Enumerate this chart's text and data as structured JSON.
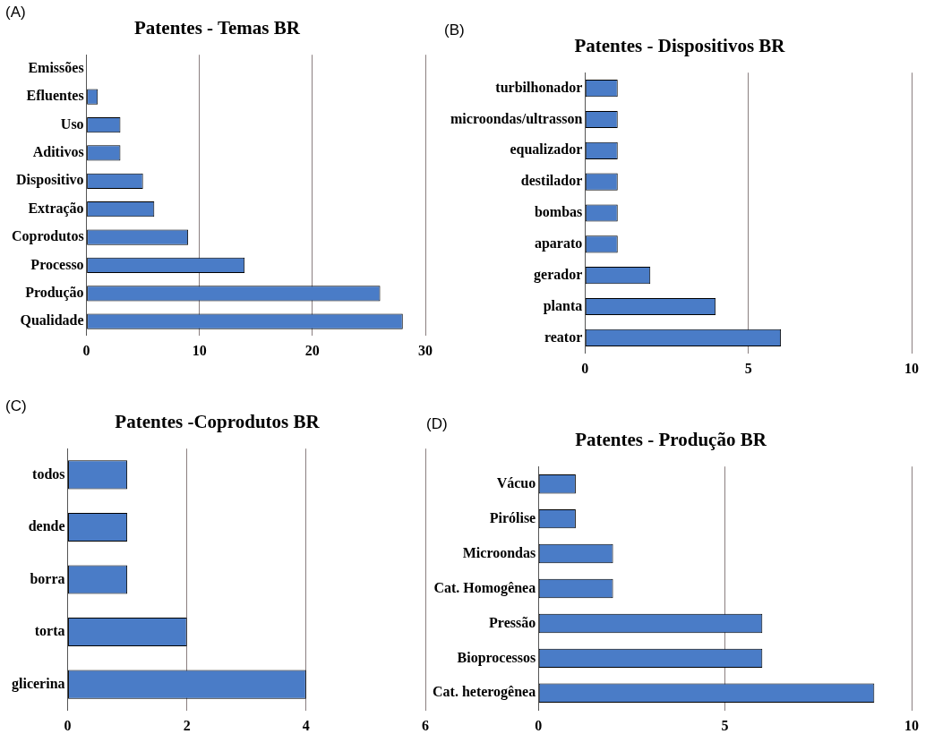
{
  "chart_data": [
    {
      "type": "bar",
      "orientation": "horizontal",
      "title": "Patentes - Temas BR",
      "annotations": [
        "(A)"
      ],
      "categories": [
        "Emissões",
        "Efluentes",
        "Uso",
        "Aditivos",
        "Dispositivo",
        "Extração",
        "Coprodutos",
        "Processo",
        "Produção",
        "Qualidade"
      ],
      "values": [
        0,
        1,
        3,
        3,
        5,
        6,
        9,
        14,
        26,
        28
      ],
      "color": "#4a7cc7",
      "xlim": [
        0,
        30
      ],
      "xticks": [
        0,
        10,
        20,
        30
      ],
      "grid": "x"
    },
    {
      "type": "bar",
      "orientation": "horizontal",
      "title": "Patentes - Dispositivos BR",
      "annotations": [
        "(B)"
      ],
      "categories": [
        "turbilhonador",
        "microondas/ultrasson",
        "equalizador",
        "destilador",
        "bombas",
        "aparato",
        "gerador",
        "planta",
        "reator"
      ],
      "values": [
        1,
        1,
        1,
        1,
        1,
        1,
        2,
        4,
        6
      ],
      "color": "#4a7cc7",
      "xlim": [
        0,
        10
      ],
      "xticks": [
        0,
        5,
        10
      ],
      "grid": "x"
    },
    {
      "type": "bar",
      "orientation": "horizontal",
      "title": "Patentes -Coprodutos BR",
      "annotations": [
        "(C)"
      ],
      "categories": [
        "todos",
        "dende",
        "borra",
        "torta",
        "glicerina"
      ],
      "values": [
        1,
        1,
        1,
        2,
        4
      ],
      "color": "#4a7cc7",
      "xlim": [
        0,
        6
      ],
      "xticks": [
        0,
        2,
        4,
        6
      ],
      "grid": "x"
    },
    {
      "type": "bar",
      "orientation": "horizontal",
      "title": "Patentes - Produção BR",
      "annotations": [
        "(D)"
      ],
      "categories": [
        "Vácuo",
        "Pirólise",
        "Microondas",
        "Cat. Homogênea",
        "Pressão",
        "Bioprocessos",
        "Cat. heterogênea"
      ],
      "values": [
        1,
        1,
        2,
        2,
        6,
        6,
        9
      ],
      "color": "#4a7cc7",
      "xlim": [
        0,
        10
      ],
      "xticks": [
        0,
        5,
        10
      ],
      "grid": "x"
    }
  ]
}
